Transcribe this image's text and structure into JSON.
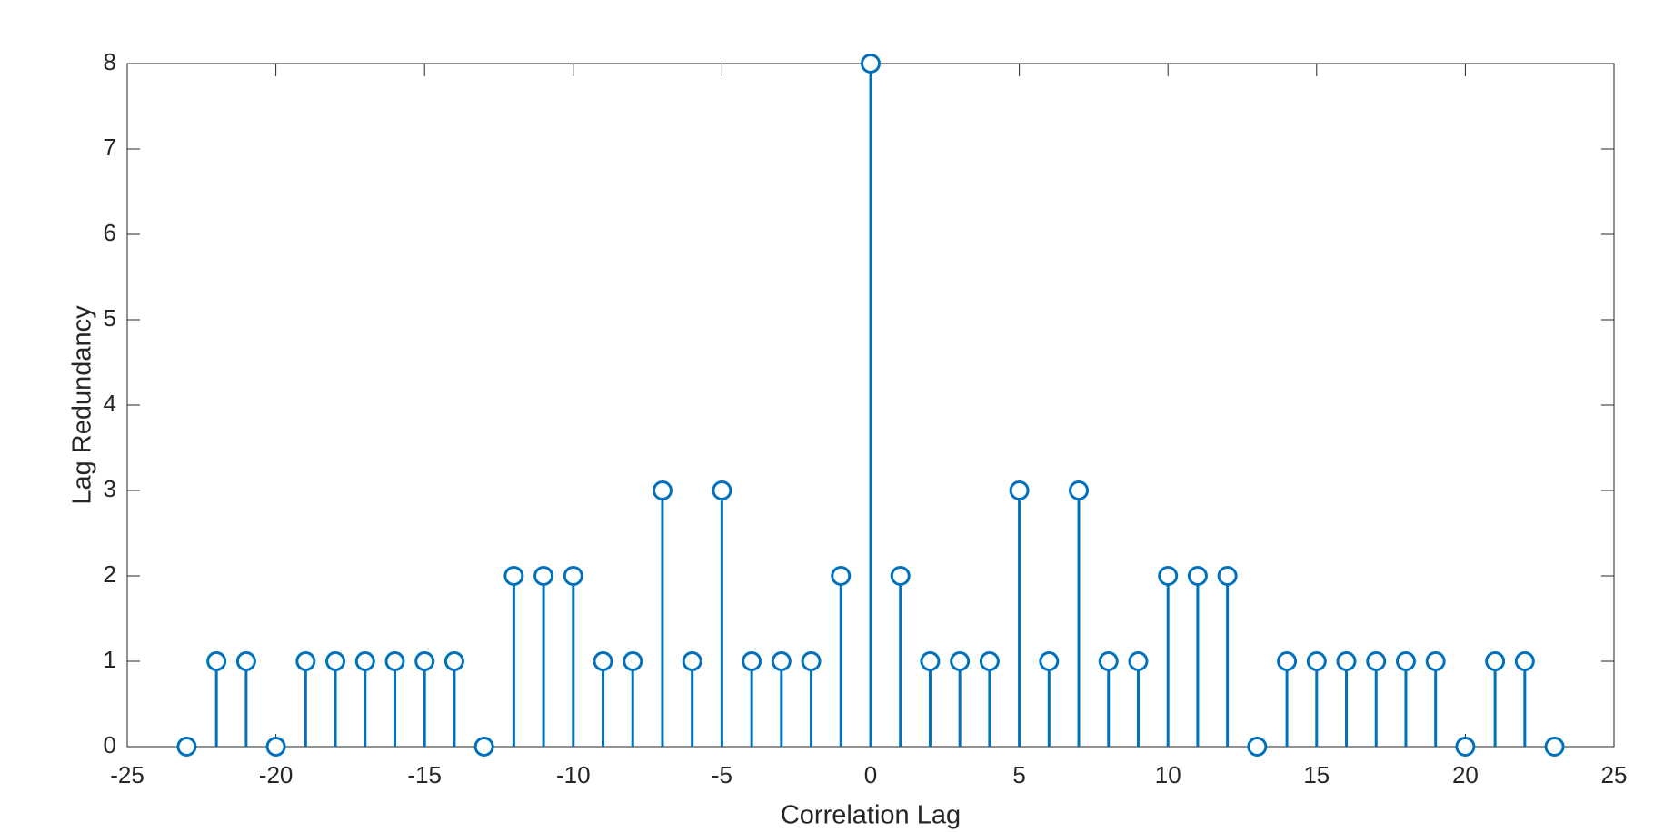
{
  "chart_data": {
    "type": "stem",
    "xlabel": "Correlation Lag",
    "ylabel": "Lag Redundancy",
    "color": "#0072BD",
    "x": [
      -23,
      -22,
      -21,
      -20,
      -19,
      -18,
      -17,
      -16,
      -15,
      -14,
      -13,
      -12,
      -11,
      -10,
      -9,
      -8,
      -7,
      -6,
      -5,
      -4,
      -3,
      -2,
      -1,
      0,
      1,
      2,
      3,
      4,
      5,
      6,
      7,
      8,
      9,
      10,
      11,
      12,
      13,
      14,
      15,
      16,
      17,
      18,
      19,
      20,
      21,
      22,
      23
    ],
    "values": [
      0,
      1,
      1,
      0,
      1,
      1,
      1,
      1,
      1,
      1,
      0,
      2,
      2,
      2,
      1,
      1,
      3,
      1,
      3,
      1,
      1,
      1,
      2,
      8,
      2,
      1,
      1,
      1,
      3,
      1,
      3,
      1,
      1,
      2,
      2,
      2,
      0,
      1,
      1,
      1,
      1,
      1,
      1,
      0,
      1,
      1,
      0
    ],
    "xlim": [
      -25,
      25
    ],
    "xticks": [
      -25,
      -20,
      -15,
      -10,
      -5,
      0,
      5,
      10,
      15,
      20,
      25
    ],
    "ylim": [
      0,
      8
    ],
    "yticks": [
      0,
      1,
      2,
      3,
      4,
      5,
      6,
      7,
      8
    ],
    "grid": false
  }
}
